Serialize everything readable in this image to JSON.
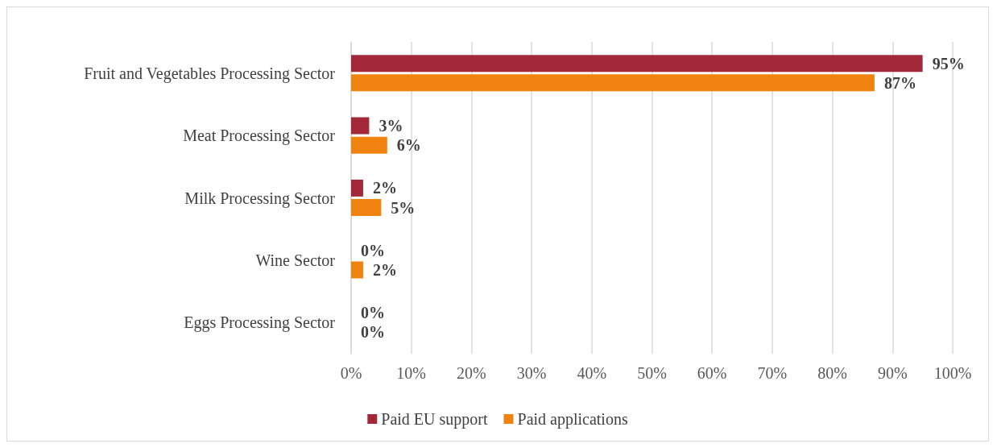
{
  "chart_data": {
    "type": "bar",
    "orientation": "horizontal",
    "categories": [
      "Fruit and Vegetables Processing Sector",
      "Meat Processing Sector",
      "Milk Processing Sector",
      "Wine Sector",
      "Eggs Processing Sector"
    ],
    "series": [
      {
        "name": "Paid EU support",
        "color": "#a3293a",
        "values": [
          95,
          3,
          2,
          0,
          0
        ],
        "value_labels": [
          "95%",
          "3%",
          "2%",
          "0%",
          "0%"
        ]
      },
      {
        "name": "Paid applications",
        "color": "#f0820f",
        "values": [
          87,
          6,
          5,
          2,
          0
        ],
        "value_labels": [
          "87%",
          "6%",
          "5%",
          "2%",
          "0%"
        ]
      }
    ],
    "xlim": [
      0,
      100
    ],
    "xticks": [
      {
        "value": 0,
        "label": "0%"
      },
      {
        "value": 10,
        "label": "10%"
      },
      {
        "value": 20,
        "label": "20%"
      },
      {
        "value": 30,
        "label": "30%"
      },
      {
        "value": 40,
        "label": "40%"
      },
      {
        "value": 50,
        "label": "50%"
      },
      {
        "value": 60,
        "label": "60%"
      },
      {
        "value": 70,
        "label": "70%"
      },
      {
        "value": 80,
        "label": "80%"
      },
      {
        "value": 90,
        "label": "90%"
      },
      {
        "value": 100,
        "label": "100%"
      }
    ],
    "grid": "x",
    "legend": "bottom"
  }
}
